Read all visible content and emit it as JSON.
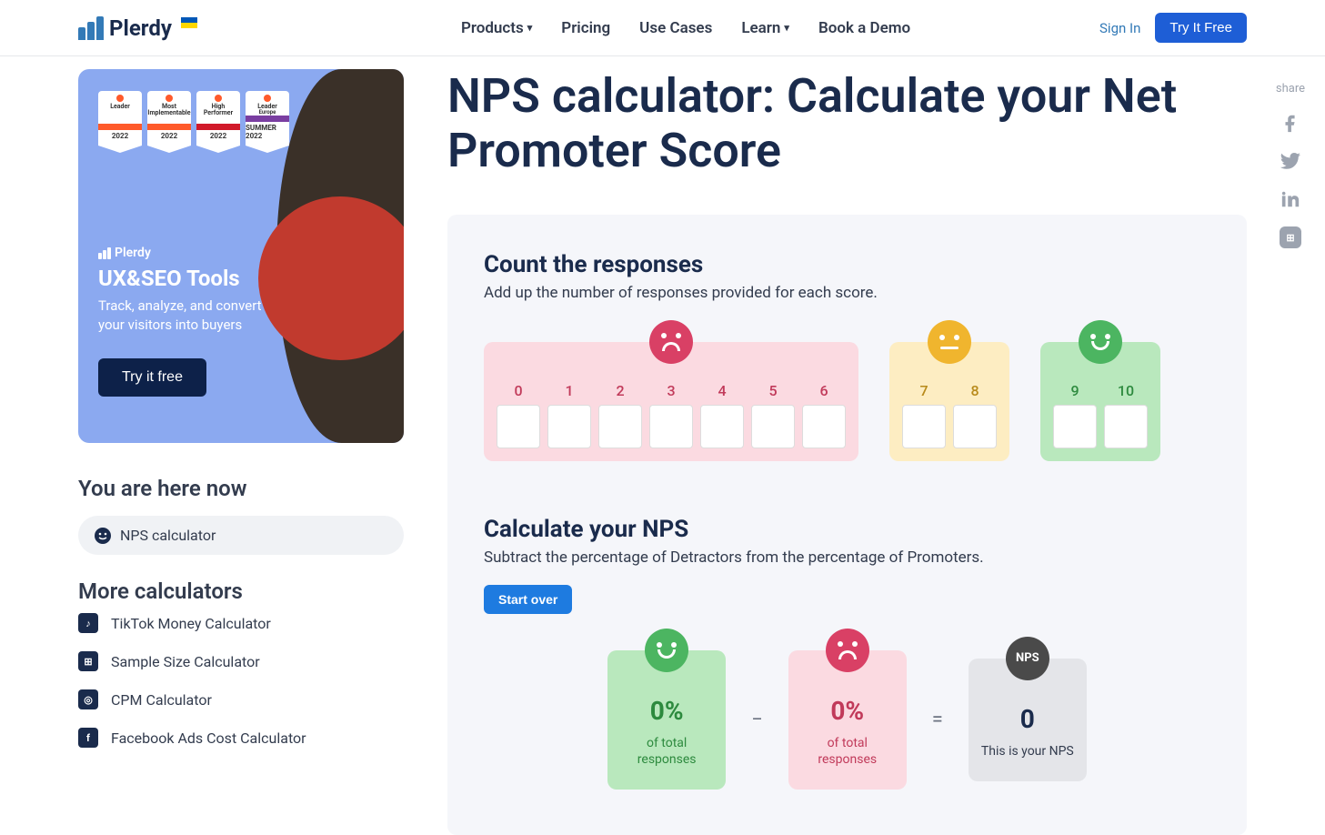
{
  "header": {
    "brand": "Plerdy",
    "nav": [
      "Products",
      "Pricing",
      "Use Cases",
      "Learn",
      "Book a Demo"
    ],
    "signin": "Sign In",
    "try_free": "Try It Free"
  },
  "promo": {
    "badges": [
      {
        "title": "Leader",
        "strip_color": "#ff5a2b",
        "year": "2022"
      },
      {
        "title": "Most\nImplementable",
        "strip_color": "#ff5a2b",
        "year": "2022"
      },
      {
        "title": "High\nPerformer",
        "strip_color": "#d11a2a",
        "year": "2022"
      },
      {
        "title": "Leader",
        "strip_color": "#7a3ea1",
        "year": "SUMMER 2022",
        "subtitle": "Europe"
      }
    ],
    "logo": "Plerdy",
    "title": "UX&SEO Tools",
    "subtitle": "Track, analyze, and convert your visitors into buyers",
    "button": "Try it free"
  },
  "sidebar": {
    "here_title": "You are here now",
    "current": "NPS calculator",
    "more_title": "More calculators",
    "links": [
      {
        "icon": "♪",
        "label": "TikTok Money Calculator"
      },
      {
        "icon": "⊞",
        "label": "Sample Size Calculator"
      },
      {
        "icon": "◎",
        "label": "CPM Calculator"
      },
      {
        "icon": "f",
        "label": "Facebook Ads Cost Calculator"
      }
    ]
  },
  "page": {
    "title": "NPS calculator: Calculate your Net Promoter Score"
  },
  "count": {
    "title": "Count the responses",
    "subtitle": "Add up the number of responses provided for each score.",
    "detractor_scores": [
      "0",
      "1",
      "2",
      "3",
      "4",
      "5",
      "6"
    ],
    "passive_scores": [
      "7",
      "8"
    ],
    "promoter_scores": [
      "9",
      "10"
    ]
  },
  "calc": {
    "title": "Calculate your NPS",
    "subtitle": "Subtract the percentage of Detractors from the percentage of Promoters.",
    "start_over": "Start over",
    "promoter_pct": "0%",
    "promoter_label": "of total responses",
    "detractor_pct": "0%",
    "detractor_label": "of total responses",
    "nps_badge": "NPS",
    "nps_value": "0",
    "nps_label": "This is your NPS",
    "minus": "−",
    "equals": "="
  },
  "share": {
    "label": "share"
  },
  "colors": {
    "primary_blue": "#1e5ed6",
    "dark_navy": "#1a2b4c",
    "detractor_bg": "#fbdae1",
    "passive_bg": "#fdedc2",
    "promoter_bg": "#b9e8bd",
    "face_sad": "#d94065",
    "face_neutral": "#f0b52e",
    "face_happy": "#4cb561"
  }
}
